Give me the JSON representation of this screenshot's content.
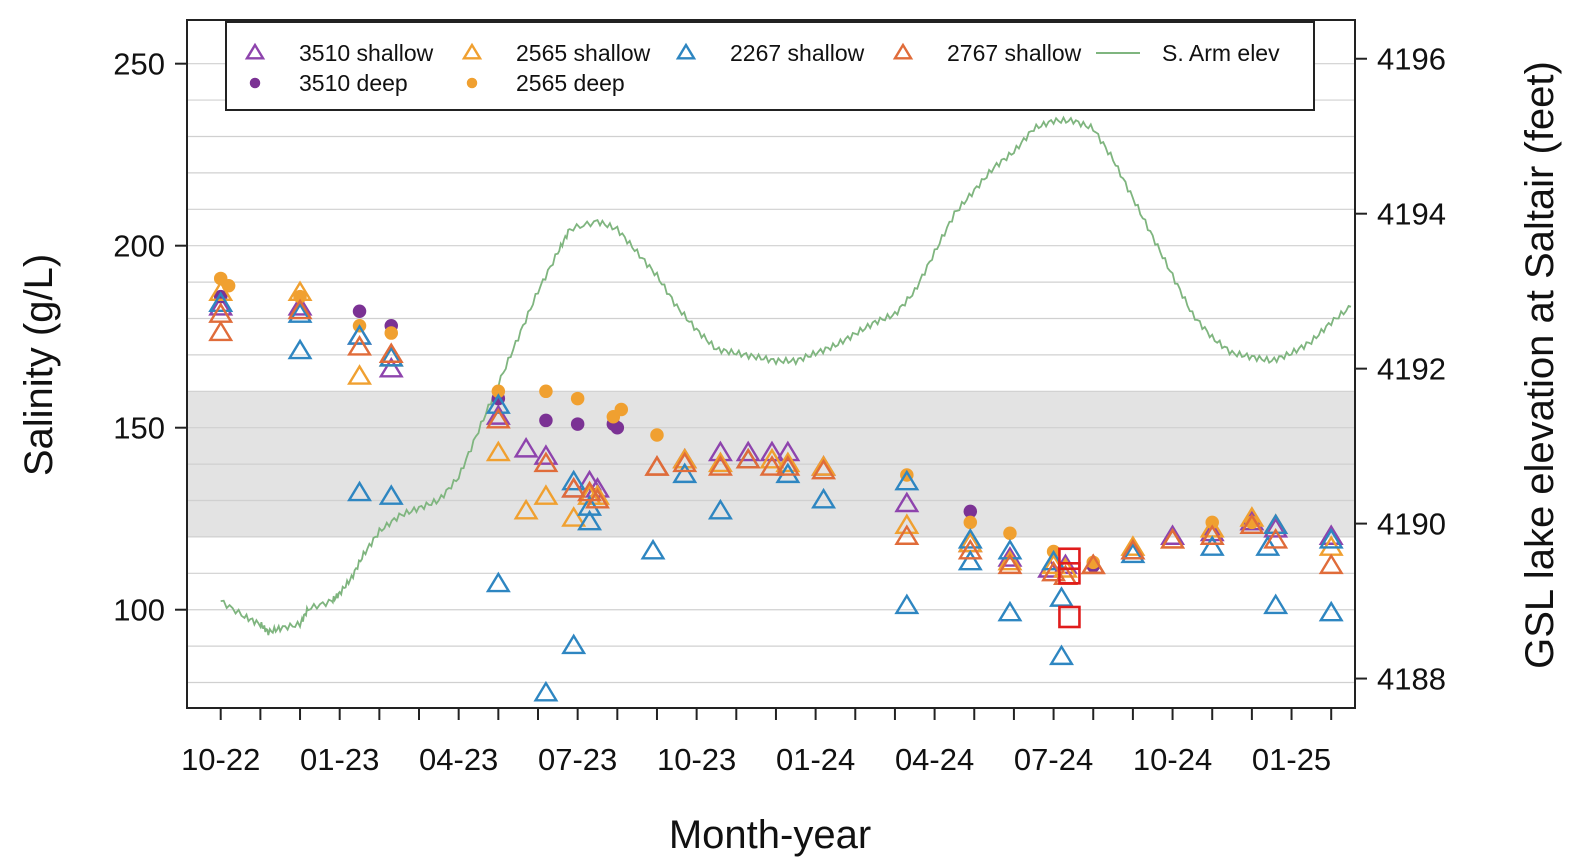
{
  "chart_data": {
    "type": "scatter",
    "xlabel": "Month-year",
    "ylabel_left": "Salinity (g/L)",
    "ylabel_right": "GSL lake elevation at Saltair (feet)",
    "x_ticks": [
      "10-22",
      "01-23",
      "04-23",
      "07-23",
      "10-23",
      "01-24",
      "04-24",
      "07-24",
      "10-24",
      "01-25"
    ],
    "x_range": [
      -0.85,
      28.6
    ],
    "ylim_left": [
      73,
      262
    ],
    "yticks_left": [
      100,
      150,
      200,
      250
    ],
    "ylim_right": [
      4187.62,
      4196.5
    ],
    "yticks_right": [
      4188,
      4190,
      4192,
      4194,
      4196
    ],
    "shaded_band": [
      120,
      160
    ],
    "grid": "horizontal",
    "legend_position": "top",
    "series": [
      {
        "name": "3510 shallow",
        "marker": "open-triangle",
        "color": "#8e44ad",
        "points": [
          [
            0,
            183
          ],
          [
            2,
            183
          ],
          [
            3.5,
            175
          ],
          [
            4.3,
            166
          ],
          [
            7,
            153
          ],
          [
            7.7,
            144
          ],
          [
            8.2,
            142
          ],
          [
            8.9,
            133
          ],
          [
            9.3,
            135
          ],
          [
            9.5,
            133
          ],
          [
            11,
            139
          ],
          [
            11.7,
            141
          ],
          [
            12.6,
            143
          ],
          [
            13.3,
            143
          ],
          [
            13.9,
            143
          ],
          [
            14.3,
            143
          ],
          [
            15.2,
            139
          ],
          [
            17.3,
            129
          ],
          [
            18.9,
            118
          ],
          [
            19.9,
            114
          ],
          [
            20.9,
            111
          ],
          [
            21.3,
            112
          ],
          [
            22,
            112
          ],
          [
            23,
            116
          ],
          [
            24,
            120
          ],
          [
            25,
            121
          ],
          [
            26,
            124
          ],
          [
            26.6,
            122
          ],
          [
            28,
            120
          ]
        ]
      },
      {
        "name": "3510 deep",
        "marker": "filled-circle",
        "color": "#7b3294",
        "points": [
          [
            0,
            186
          ],
          [
            3.5,
            182
          ],
          [
            4.3,
            178
          ],
          [
            7,
            158
          ],
          [
            8.2,
            152
          ],
          [
            9,
            151
          ],
          [
            9.9,
            151
          ],
          [
            10,
            150
          ],
          [
            18.9,
            127
          ],
          [
            22,
            112
          ]
        ]
      },
      {
        "name": "2565 shallow",
        "marker": "open-triangle",
        "color": "#f0a030",
        "points": [
          [
            0,
            187
          ],
          [
            2,
            187
          ],
          [
            3.5,
            164
          ],
          [
            4.3,
            169
          ],
          [
            7,
            143
          ],
          [
            7.7,
            127
          ],
          [
            8.2,
            131
          ],
          [
            8.9,
            125
          ],
          [
            9.3,
            131
          ],
          [
            9.5,
            131
          ],
          [
            11,
            139
          ],
          [
            11.7,
            141
          ],
          [
            12.6,
            140
          ],
          [
            13.3,
            141
          ],
          [
            13.9,
            141
          ],
          [
            14.3,
            140
          ],
          [
            15.2,
            139
          ],
          [
            17.3,
            123
          ],
          [
            18.9,
            118
          ],
          [
            19.9,
            113
          ],
          [
            21,
            112
          ],
          [
            21.3,
            111
          ],
          [
            22,
            112
          ],
          [
            23,
            117
          ],
          [
            24,
            119
          ],
          [
            25,
            122
          ],
          [
            26,
            125
          ],
          [
            26.6,
            123
          ],
          [
            28,
            117
          ]
        ]
      },
      {
        "name": "2565 deep",
        "marker": "filled-circle",
        "color": "#f0a030",
        "points": [
          [
            0,
            191
          ],
          [
            0.2,
            189
          ],
          [
            2,
            186
          ],
          [
            3.5,
            178
          ],
          [
            4.3,
            176
          ],
          [
            7,
            160
          ],
          [
            8.2,
            160
          ],
          [
            9,
            158
          ],
          [
            9.9,
            153
          ],
          [
            10.1,
            155
          ],
          [
            11,
            148
          ],
          [
            17.3,
            137
          ],
          [
            18.9,
            124
          ],
          [
            19.9,
            121
          ],
          [
            21,
            116
          ],
          [
            22,
            113
          ],
          [
            25,
            124
          ],
          [
            26,
            124
          ]
        ]
      },
      {
        "name": "2267 shallow",
        "marker": "open-triangle",
        "color": "#2e86c1",
        "points": [
          [
            0,
            184
          ],
          [
            2,
            181
          ],
          [
            2,
            171
          ],
          [
            3.5,
            175
          ],
          [
            3.5,
            132
          ],
          [
            4.3,
            131
          ],
          [
            4.3,
            169
          ],
          [
            7,
            156
          ],
          [
            7,
            107
          ],
          [
            8.2,
            77
          ],
          [
            8.9,
            90
          ],
          [
            8.9,
            135
          ],
          [
            9.3,
            128
          ],
          [
            9.3,
            124
          ],
          [
            10.9,
            116
          ],
          [
            11.7,
            137
          ],
          [
            12.6,
            127
          ],
          [
            13.3,
            141
          ],
          [
            14.3,
            137
          ],
          [
            15.2,
            130
          ],
          [
            17.3,
            135
          ],
          [
            17.3,
            101
          ],
          [
            18.9,
            119
          ],
          [
            18.9,
            113
          ],
          [
            19.9,
            116
          ],
          [
            19.9,
            99
          ],
          [
            21,
            113
          ],
          [
            21.2,
            103
          ],
          [
            21.2,
            87
          ],
          [
            23,
            115
          ],
          [
            25,
            117
          ],
          [
            26.4,
            117
          ],
          [
            26.6,
            101
          ],
          [
            26.6,
            123
          ],
          [
            28,
            99
          ],
          [
            28,
            119
          ]
        ]
      },
      {
        "name": "2767 shallow",
        "marker": "open-triangle",
        "color": "#e06c3a",
        "points": [
          [
            0,
            176
          ],
          [
            0,
            181
          ],
          [
            2,
            182
          ],
          [
            3.5,
            172
          ],
          [
            4.3,
            170
          ],
          [
            7,
            152
          ],
          [
            8.2,
            140
          ],
          [
            8.9,
            133
          ],
          [
            9.3,
            132
          ],
          [
            9.5,
            130
          ],
          [
            11,
            139
          ],
          [
            11.7,
            140
          ],
          [
            12.6,
            139
          ],
          [
            13.3,
            141
          ],
          [
            13.9,
            139
          ],
          [
            14.3,
            139
          ],
          [
            15.2,
            138
          ],
          [
            17.3,
            120
          ],
          [
            18.9,
            116
          ],
          [
            19.9,
            112
          ],
          [
            21,
            110
          ],
          [
            21.3,
            109
          ],
          [
            22,
            112
          ],
          [
            23,
            116
          ],
          [
            24,
            119
          ],
          [
            25,
            120
          ],
          [
            26,
            123
          ],
          [
            26.6,
            119
          ],
          [
            28,
            112
          ]
        ]
      },
      {
        "name": "",
        "marker": "open-square",
        "color": "#e01c1c",
        "points": [
          [
            21.4,
            114
          ],
          [
            21.4,
            110
          ],
          [
            21.4,
            98
          ]
        ]
      },
      {
        "name": "S. Arm elev",
        "marker": "line",
        "color": "#7fb57f",
        "axis": "right",
        "points": [
          [
            0,
            4189.0
          ],
          [
            0.6,
            4188.8
          ],
          [
            1.0,
            4188.7
          ],
          [
            1.2,
            4188.6
          ],
          [
            1.5,
            4188.65
          ],
          [
            2.0,
            4188.7
          ],
          [
            2.2,
            4188.9
          ],
          [
            2.8,
            4189.0
          ],
          [
            3.0,
            4189.1
          ],
          [
            3.3,
            4189.3
          ],
          [
            3.6,
            4189.6
          ],
          [
            4.0,
            4189.9
          ],
          [
            4.5,
            4190.1
          ],
          [
            5.0,
            4190.2
          ],
          [
            5.5,
            4190.3
          ],
          [
            6.0,
            4190.6
          ],
          [
            6.5,
            4191.2
          ],
          [
            7.0,
            4191.8
          ],
          [
            7.5,
            4192.4
          ],
          [
            8.0,
            4193.0
          ],
          [
            8.5,
            4193.5
          ],
          [
            8.8,
            4193.8
          ],
          [
            9.5,
            4193.9
          ],
          [
            10.0,
            4193.8
          ],
          [
            10.5,
            4193.5
          ],
          [
            11.0,
            4193.2
          ],
          [
            11.5,
            4192.8
          ],
          [
            12.0,
            4192.5
          ],
          [
            12.5,
            4192.25
          ],
          [
            13.0,
            4192.2
          ],
          [
            13.5,
            4192.15
          ],
          [
            14.0,
            4192.1
          ],
          [
            14.5,
            4192.1
          ],
          [
            15.0,
            4192.2
          ],
          [
            15.5,
            4192.3
          ],
          [
            16.0,
            4192.45
          ],
          [
            16.5,
            4192.6
          ],
          [
            17.0,
            4192.7
          ],
          [
            17.5,
            4193.0
          ],
          [
            18.0,
            4193.5
          ],
          [
            18.5,
            4194.0
          ],
          [
            19.0,
            4194.3
          ],
          [
            19.5,
            4194.6
          ],
          [
            20.0,
            4194.8
          ],
          [
            20.5,
            4195.1
          ],
          [
            21.0,
            4195.2
          ],
          [
            21.5,
            4195.2
          ],
          [
            22.0,
            4195.1
          ],
          [
            22.5,
            4194.7
          ],
          [
            23.0,
            4194.2
          ],
          [
            23.5,
            4193.7
          ],
          [
            24.0,
            4193.2
          ],
          [
            24.5,
            4192.7
          ],
          [
            25.0,
            4192.4
          ],
          [
            25.5,
            4192.2
          ],
          [
            26.0,
            4192.15
          ],
          [
            26.5,
            4192.1
          ],
          [
            27.0,
            4192.2
          ],
          [
            27.5,
            4192.35
          ],
          [
            28.0,
            4192.6
          ],
          [
            28.5,
            4192.8
          ]
        ]
      }
    ]
  }
}
